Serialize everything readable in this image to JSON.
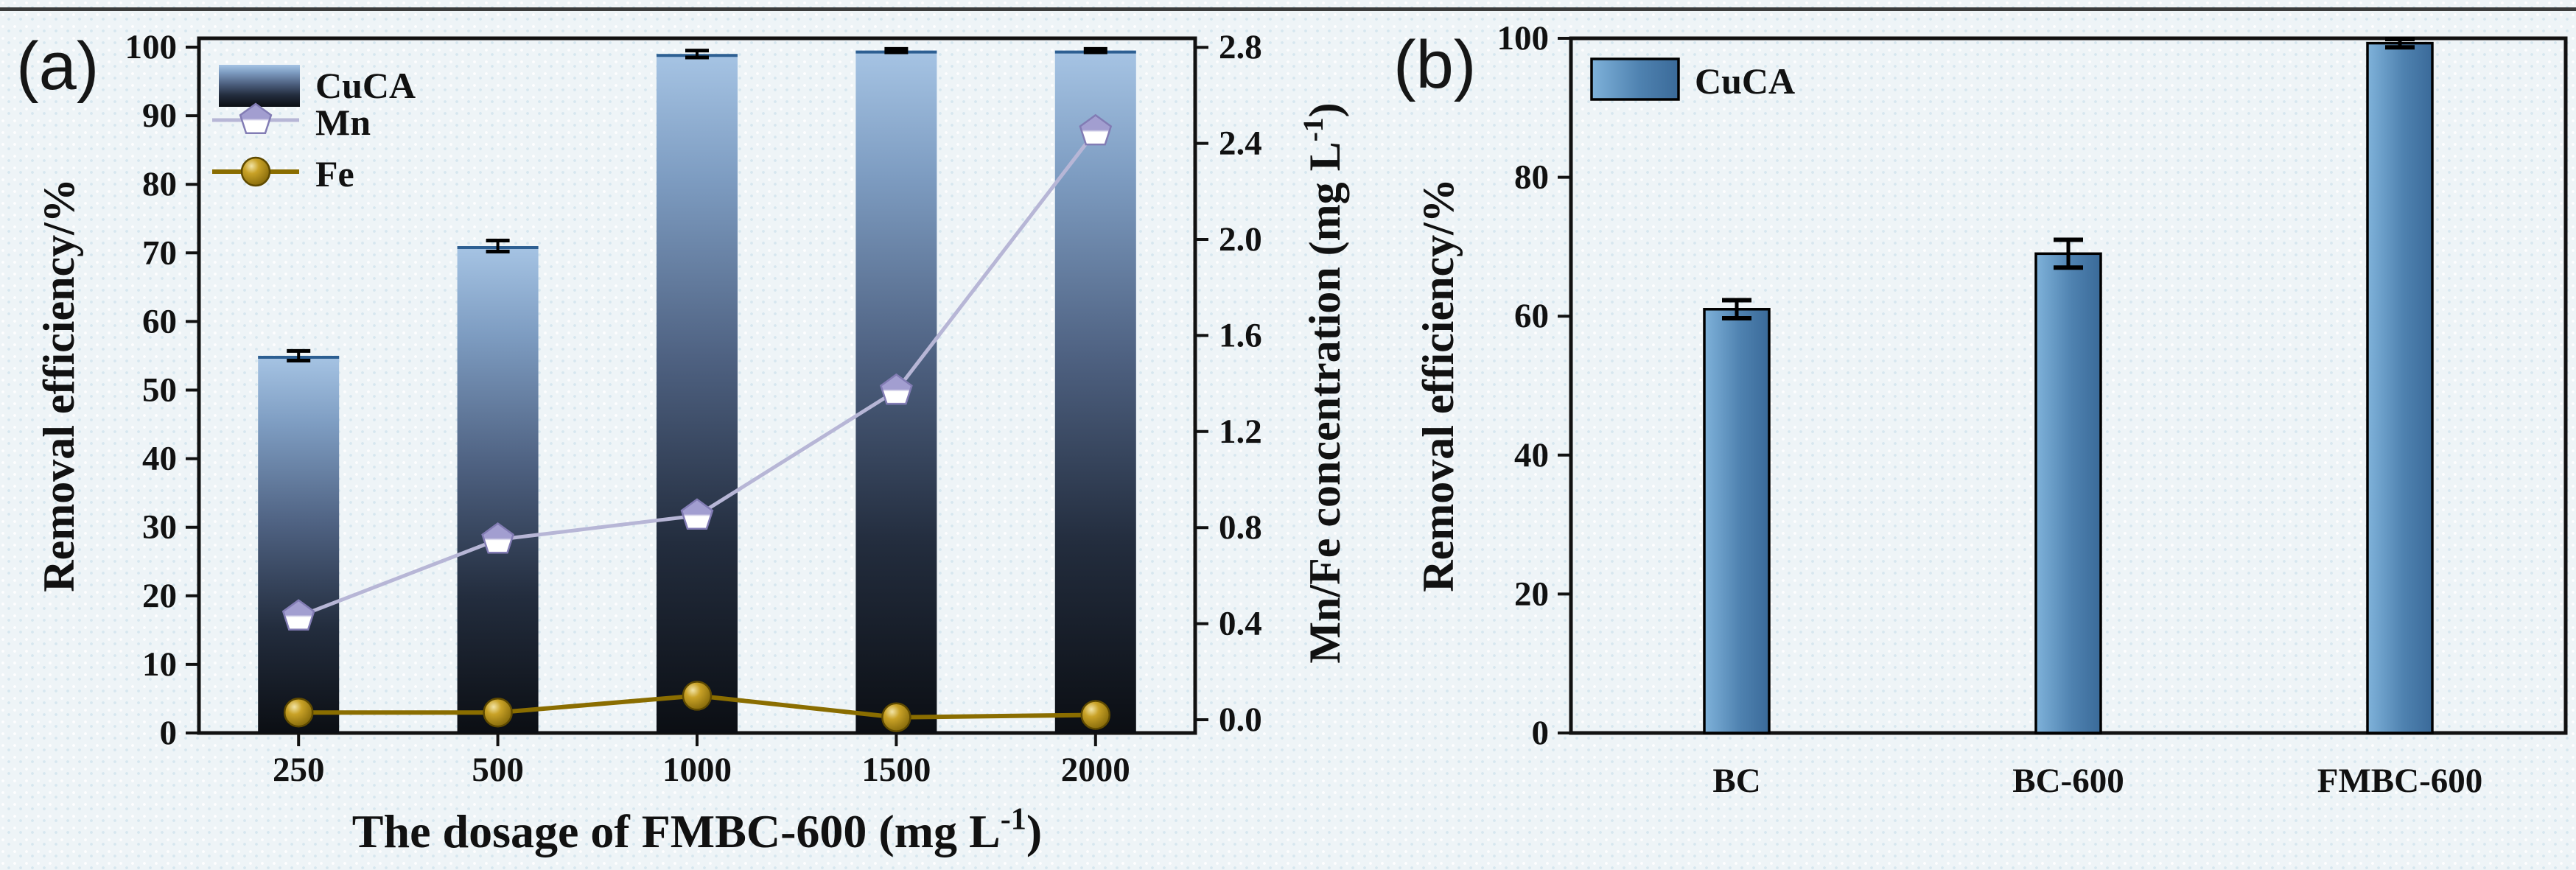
{
  "figure": {
    "background": "#eef4f7",
    "top_border_color": "#222222"
  },
  "chart_data": [
    {
      "id": "a",
      "type": "bar+line",
      "panel_tag": "(a)",
      "xlabel_parts": [
        "The dosage of FMBC-600 (mg L",
        "-1",
        ")"
      ],
      "ylabel_left": "Removal efficiency/%",
      "ylabel_right_parts": [
        "Mn/Fe concentration (mg L",
        "-1",
        ")"
      ],
      "categories": [
        "250",
        "500",
        "1000",
        "1500",
        "2000"
      ],
      "bars": {
        "name": "CuCA",
        "axis": "left",
        "values": [
          55,
          71,
          99,
          99.5,
          99.5
        ],
        "errors": [
          0.7,
          0.8,
          0.5,
          0.25,
          0.25
        ]
      },
      "lines": [
        {
          "name": "Mn",
          "axis": "right",
          "marker": "pentagon",
          "values": [
            0.43,
            0.75,
            0.85,
            1.37,
            2.45
          ]
        },
        {
          "name": "Fe",
          "axis": "right",
          "marker": "circle",
          "values": [
            0.03,
            0.03,
            0.1,
            0.01,
            0.02
          ]
        }
      ],
      "ylim_left": [
        0,
        100
      ],
      "yticks_left_values": [
        0,
        10,
        20,
        30,
        40,
        50,
        60,
        70,
        80,
        90,
        100
      ],
      "yticks_left_labels": [
        "0",
        "10",
        "20",
        "30",
        "40",
        "50",
        "60",
        "70",
        "80",
        "90",
        "100"
      ],
      "ylim_right": [
        0,
        2.8
      ],
      "yticks_right_values": [
        0.0,
        0.4,
        0.8,
        1.2,
        1.6,
        2.0,
        2.4,
        2.8
      ],
      "yticks_right_labels": [
        "0.0",
        "0.4",
        "0.8",
        "1.2",
        "1.6",
        "2.0",
        "2.4",
        "2.8"
      ],
      "legend": [
        "CuCA",
        "Mn",
        "Fe"
      ],
      "legend_position": "upper-left",
      "grid": false
    },
    {
      "id": "b",
      "type": "bar",
      "panel_tag": "(b)",
      "xlabel_parts": null,
      "ylabel_left": "Removal efficiency/%",
      "categories": [
        "BC",
        "BC-600",
        "FMBC-600"
      ],
      "bars": {
        "name": "CuCA",
        "axis": "left",
        "values": [
          61,
          69,
          99.3
        ],
        "errors": [
          1.3,
          2.0,
          0.6
        ]
      },
      "ylim_left": [
        0,
        100
      ],
      "yticks_left_values": [
        0,
        20,
        40,
        60,
        80,
        100
      ],
      "yticks_left_labels": [
        "0",
        "20",
        "40",
        "60",
        "80",
        "100"
      ],
      "legend": [
        "CuCA"
      ],
      "legend_position": "upper-left",
      "grid": false
    }
  ],
  "colors": {
    "axis": "#111111",
    "text": "#111111",
    "error_bar": "#000000",
    "bar_a_gradient": [
      "#a6c4e4",
      "#7e9dc2",
      "#4e6181",
      "#232d3e",
      "#0b0e13"
    ],
    "bar_a_top_edge": "#2d5f92",
    "bar_b_gradient": [
      "#7fb2da",
      "#4f82b0",
      "#3a6a99"
    ],
    "bar_b_border": "#000000",
    "mn_line": "#b7b6d6",
    "mn_marker_fill_top": "#a29ed0",
    "mn_marker_fill_bottom": "#ffffff",
    "mn_marker_stroke": "#827cb4",
    "fe_line": "#8a6d00",
    "fe_marker_inner": "#f2e4a6",
    "fe_marker_mid": "#c9a227",
    "fe_marker_outer": "#6e5600",
    "fe_marker_stroke": "#5f4a00"
  }
}
